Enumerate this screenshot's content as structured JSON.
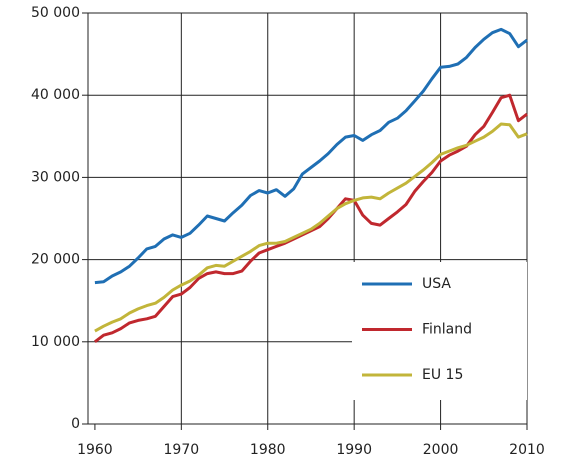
{
  "chart_data": {
    "type": "line",
    "x": [
      1960,
      1961,
      1962,
      1963,
      1964,
      1965,
      1966,
      1967,
      1968,
      1969,
      1970,
      1971,
      1972,
      1973,
      1974,
      1975,
      1976,
      1977,
      1978,
      1979,
      1980,
      1981,
      1982,
      1983,
      1984,
      1985,
      1986,
      1987,
      1988,
      1989,
      1990,
      1991,
      1992,
      1993,
      1994,
      1995,
      1996,
      1997,
      1998,
      1999,
      2000,
      2001,
      2002,
      2003,
      2004,
      2005,
      2006,
      2007,
      2008,
      2009,
      2010
    ],
    "series": [
      {
        "name": "USA",
        "color": "#1f6fb4",
        "values": [
          17200,
          17300,
          18000,
          18500,
          19200,
          20200,
          21300,
          21600,
          22500,
          23000,
          22700,
          23200,
          24200,
          25300,
          25000,
          24700,
          25700,
          26600,
          27800,
          28400,
          28100,
          28500,
          27700,
          28600,
          30400,
          31200,
          32000,
          32900,
          34000,
          34900,
          35100,
          34500,
          35200,
          35700,
          36700,
          37200,
          38100,
          39300,
          40500,
          42000,
          43400,
          43500,
          43800,
          44600,
          45800,
          46800,
          47600,
          48000,
          47500,
          45900,
          46700
        ]
      },
      {
        "name": "Finland",
        "color": "#c0282e",
        "values": [
          10000,
          10800,
          11100,
          11600,
          12300,
          12600,
          12800,
          13100,
          14300,
          15500,
          15800,
          16600,
          17700,
          18300,
          18500,
          18300,
          18300,
          18600,
          19800,
          20800,
          21200,
          21600,
          22000,
          22500,
          23000,
          23500,
          24000,
          25000,
          26200,
          27400,
          27200,
          25400,
          24400,
          24200,
          25000,
          25800,
          26700,
          28300,
          29500,
          30600,
          32000,
          32700,
          33200,
          33800,
          35200,
          36200,
          37900,
          39700,
          40000,
          36900,
          37700
        ]
      },
      {
        "name": "EU 15",
        "color": "#c2b53a",
        "values": [
          11300,
          11900,
          12400,
          12800,
          13500,
          14000,
          14400,
          14700,
          15400,
          16300,
          16900,
          17400,
          18100,
          19000,
          19300,
          19200,
          19800,
          20400,
          21000,
          21700,
          22000,
          22000,
          22200,
          22700,
          23200,
          23700,
          24400,
          25300,
          26200,
          26800,
          27200,
          27500,
          27600,
          27400,
          28100,
          28700,
          29300,
          30100,
          30900,
          31800,
          32800,
          33200,
          33600,
          33900,
          34400,
          34900,
          35600,
          36500,
          36400,
          34900,
          35300
        ]
      }
    ],
    "xlim": [
      1959.2,
      2010
    ],
    "xticks": [
      1960,
      1970,
      1980,
      1990,
      2000,
      2010
    ],
    "ylim": [
      0,
      50000
    ],
    "yticks": [
      0,
      {
        "value": 10000,
        "label": "10 000"
      },
      {
        "value": 20000,
        "label": "20 000"
      },
      {
        "value": 30000,
        "label": "30 000"
      },
      {
        "value": 40000,
        "label": "40 000"
      },
      {
        "value": 50000,
        "label": "50 000"
      }
    ],
    "grid": true,
    "legend": "lower right"
  }
}
